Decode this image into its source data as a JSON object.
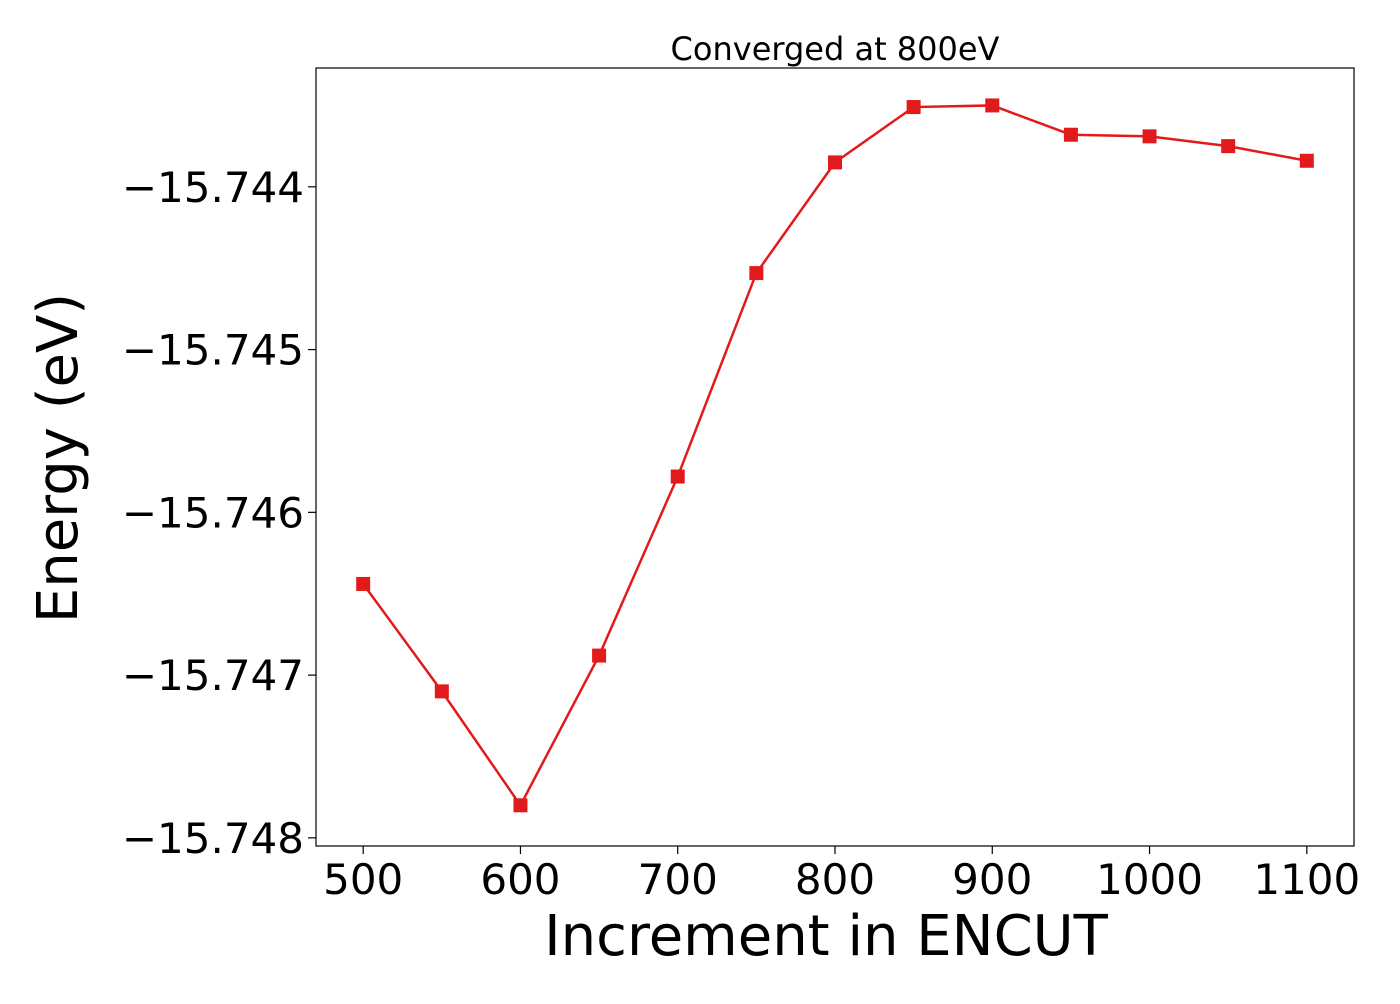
{
  "chart_data": {
    "type": "line",
    "title": "Converged at 800eV",
    "xlabel": "Increment in ENCUT",
    "ylabel": "Energy (eV)",
    "xlim": [
      470,
      1130
    ],
    "ylim": [
      -15.74805,
      -15.74327
    ],
    "xticks": [
      500,
      600,
      700,
      800,
      900,
      1000,
      1100
    ],
    "yticks": [
      -15.744,
      -15.745,
      -15.746,
      -15.747,
      -15.748
    ],
    "ytick_labels": [
      "−15.744",
      "−15.745",
      "−15.746",
      "−15.747",
      "−15.748"
    ],
    "grid": false,
    "legend": "none",
    "series": [
      {
        "color": "#e31a1c",
        "marker": "square",
        "x": [
          500,
          550,
          600,
          650,
          700,
          750,
          800,
          850,
          900,
          950,
          1000,
          1050,
          1100
        ],
        "y": [
          -15.74644,
          -15.7471,
          -15.7478,
          -15.74688,
          -15.74578,
          -15.74453,
          -15.74385,
          -15.74351,
          -15.7435,
          -15.74368,
          -15.74369,
          -15.74375,
          -15.74384
        ]
      }
    ]
  }
}
